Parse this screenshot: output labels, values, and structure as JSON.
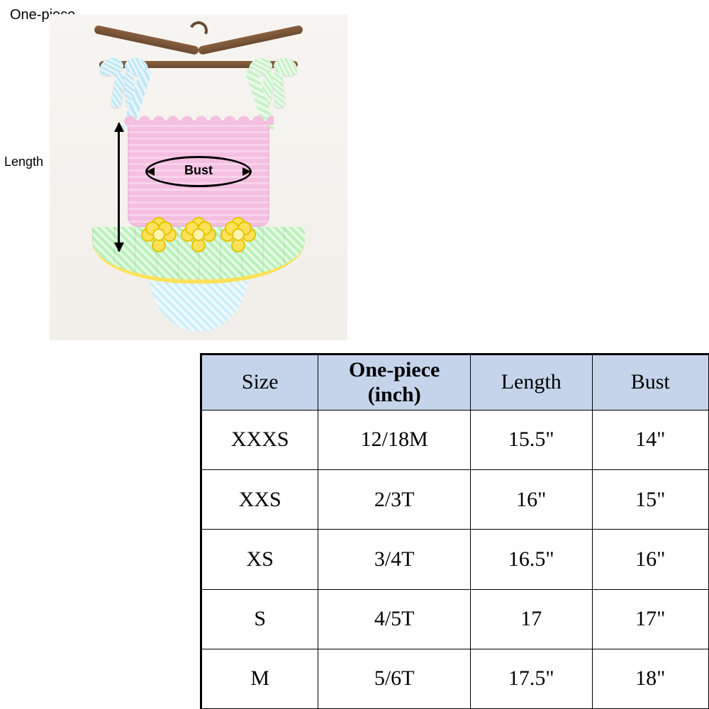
{
  "product": {
    "type_label": "One-piece",
    "measure_bust_label": "Bust",
    "measure_length_label": "Length",
    "colors": {
      "bodice": "#f4bfe0",
      "skirt": "#b9f0b9",
      "brief": "#cdeffb",
      "strap_left": "#bfe7f4",
      "strap_right": "#c8f0c8",
      "flower": "#ffe15a",
      "skirt_trim": "#ffe15a",
      "hanger": "#6a4a30",
      "background": "#f4f1ec"
    }
  },
  "size_table": {
    "header_bg": "#c5d4ea",
    "border_color": "#000000",
    "font_family": "Times New Roman",
    "header_fontsize_pt": 22,
    "body_fontsize_pt": 22,
    "columns": [
      {
        "key": "size",
        "label_line1": "Size",
        "label_line2": "",
        "bold": false
      },
      {
        "key": "one_piece",
        "label_line1": "One-piece",
        "label_line2": "(inch)",
        "bold": true
      },
      {
        "key": "length",
        "label_line1": "Length",
        "label_line2": "",
        "bold": false
      },
      {
        "key": "bust",
        "label_line1": "Bust",
        "label_line2": "",
        "bold": false
      }
    ],
    "rows": [
      {
        "size": "XXXS",
        "one_piece": "12/18M",
        "length": "15.5\"",
        "bust": "14\""
      },
      {
        "size": "XXS",
        "one_piece": "2/3T",
        "length": "16\"",
        "bust": "15\""
      },
      {
        "size": "XS",
        "one_piece": "3/4T",
        "length": "16.5\"",
        "bust": "16\""
      },
      {
        "size": "S",
        "one_piece": "4/5T",
        "length": "17",
        "bust": "17\""
      },
      {
        "size": "M",
        "one_piece": "5/6T",
        "length": "17.5\"",
        "bust": "18\""
      }
    ]
  }
}
